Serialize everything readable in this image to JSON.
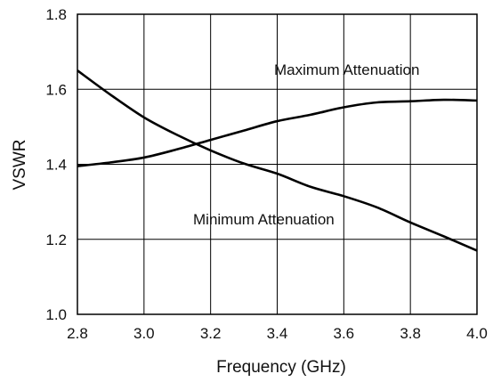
{
  "chart_data": {
    "type": "line",
    "title": "",
    "xlabel": "Frequency (GHz)",
    "ylabel": "VSWR",
    "xlim": [
      2.8,
      4.0
    ],
    "ylim": [
      1.0,
      1.8
    ],
    "x_ticks": [
      "2.8",
      "3.0",
      "3.2",
      "3.4",
      "3.6",
      "3.8",
      "4.0"
    ],
    "y_ticks": [
      "1.0",
      "1.2",
      "1.4",
      "1.6",
      "1.8"
    ],
    "grid": true,
    "legend": "none",
    "line_color": "#000000",
    "grid_color": "#000000",
    "series": [
      {
        "name": "Maximum Attenuation",
        "x": [
          2.8,
          2.9,
          3.0,
          3.1,
          3.2,
          3.3,
          3.4,
          3.5,
          3.6,
          3.7,
          3.8,
          3.9,
          4.0
        ],
        "y": [
          1.395,
          1.405,
          1.418,
          1.44,
          1.465,
          1.49,
          1.515,
          1.532,
          1.552,
          1.565,
          1.568,
          1.572,
          1.57
        ]
      },
      {
        "name": "Minimum Attenuation",
        "x": [
          2.8,
          2.9,
          3.0,
          3.1,
          3.2,
          3.3,
          3.4,
          3.5,
          3.6,
          3.7,
          3.8,
          3.9,
          4.0
        ],
        "y": [
          1.65,
          1.585,
          1.525,
          1.478,
          1.437,
          1.402,
          1.375,
          1.34,
          1.315,
          1.285,
          1.245,
          1.208,
          1.17
        ]
      }
    ]
  }
}
